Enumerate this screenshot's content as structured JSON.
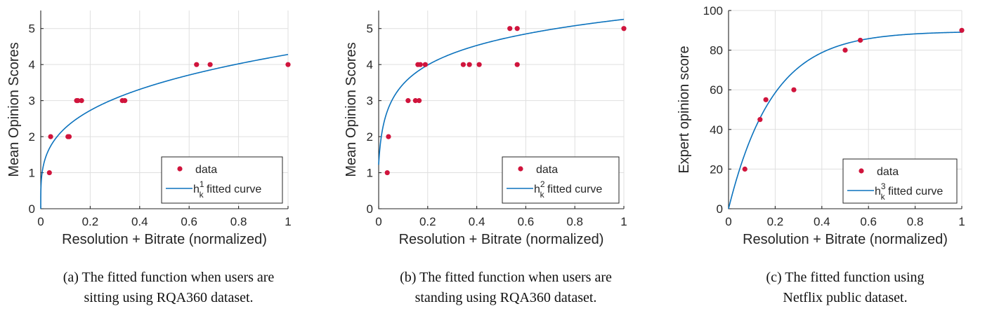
{
  "colors": {
    "data": "#d0143c",
    "curve": "#0b72bd"
  },
  "chart_data": [
    {
      "type": "scatter",
      "panel": "a",
      "xlabel": "Resolution + Bitrate (normalized)",
      "ylabel": "Mean Opinion Scores",
      "xlim": [
        0,
        1
      ],
      "ylim": [
        0,
        5.5
      ],
      "xticks": [
        "0",
        "0.2",
        "0.4",
        "0.6",
        "0.8",
        "1"
      ],
      "yticks": [
        "0",
        "1",
        "2",
        "3",
        "4",
        "5"
      ],
      "grid": true,
      "legend_position": "bottom-right",
      "legend": {
        "data": "data",
        "curve_prefix": "h",
        "curve_sub": "k",
        "curve_sup": "1",
        "curve_suffix": " fitted curve"
      },
      "series": [
        {
          "name": "data",
          "kind": "points",
          "x": [
            0.035,
            0.04,
            0.11,
            0.115,
            0.145,
            0.15,
            0.165,
            0.33,
            0.34,
            0.63,
            0.685,
            1.0
          ],
          "y": [
            1,
            2,
            2,
            2,
            3,
            3,
            3,
            3,
            3,
            4,
            4,
            4
          ]
        },
        {
          "name": "fitted curve",
          "kind": "curve",
          "model": "power",
          "a": 4.28,
          "b": 0.28
        }
      ],
      "caption": [
        "(a) The fitted function when users are",
        "sitting using RQA360 dataset."
      ]
    },
    {
      "type": "scatter",
      "panel": "b",
      "xlabel": "Resolution + Bitrate (normalized)",
      "ylabel": "Mean Opinion Scores",
      "xlim": [
        0,
        1
      ],
      "ylim": [
        0,
        5.5
      ],
      "xticks": [
        "0",
        "0.2",
        "0.4",
        "0.6",
        "0.8",
        "1"
      ],
      "yticks": [
        "0",
        "1",
        "2",
        "3",
        "4",
        "5"
      ],
      "grid": true,
      "legend_position": "bottom-right",
      "legend": {
        "data": "data",
        "curve_prefix": "h",
        "curve_sub": "k",
        "curve_sup": "2",
        "curve_suffix": " fitted curve"
      },
      "series": [
        {
          "name": "data",
          "kind": "points",
          "x": [
            0.035,
            0.04,
            0.12,
            0.15,
            0.16,
            0.165,
            0.17,
            0.19,
            0.345,
            0.37,
            0.41,
            0.535,
            0.565,
            0.565,
            1.0
          ],
          "y": [
            1,
            2,
            3,
            3,
            4,
            3,
            4,
            4,
            4,
            4,
            4,
            5,
            5,
            4,
            5
          ]
        },
        {
          "name": "fitted curve",
          "kind": "curve",
          "model": "log",
          "a": 5.25,
          "b": 0.8,
          "c": 0.0065
        }
      ],
      "caption": [
        "(b) The fitted function when users are",
        "standing using RQA360 dataset."
      ]
    },
    {
      "type": "scatter",
      "panel": "c",
      "xlabel": "Resolution + Bitrate (normalized)",
      "ylabel": "Expert opinion score",
      "xlim": [
        0,
        1
      ],
      "ylim": [
        0,
        100
      ],
      "xticks": [
        "0",
        "0.2",
        "0.4",
        "0.6",
        "0.8",
        "1"
      ],
      "yticks": [
        "0",
        "20",
        "40",
        "60",
        "80",
        "100"
      ],
      "grid": true,
      "legend_position": "bottom-right",
      "legend": {
        "data": "data",
        "curve_prefix": "h",
        "curve_sub": "k",
        "curve_sup": "3",
        "curve_suffix": " fitted curve"
      },
      "series": [
        {
          "name": "data",
          "kind": "points",
          "x": [
            0.07,
            0.135,
            0.16,
            0.28,
            0.5,
            0.565,
            1.0
          ],
          "y": [
            20,
            45,
            55,
            60,
            80,
            85,
            90
          ]
        },
        {
          "name": "fitted curve",
          "kind": "curve",
          "model": "exp",
          "a": 89.5,
          "b": 5.3
        }
      ],
      "caption": [
        "(c) The fitted function using",
        "Netflix public dataset."
      ]
    }
  ]
}
